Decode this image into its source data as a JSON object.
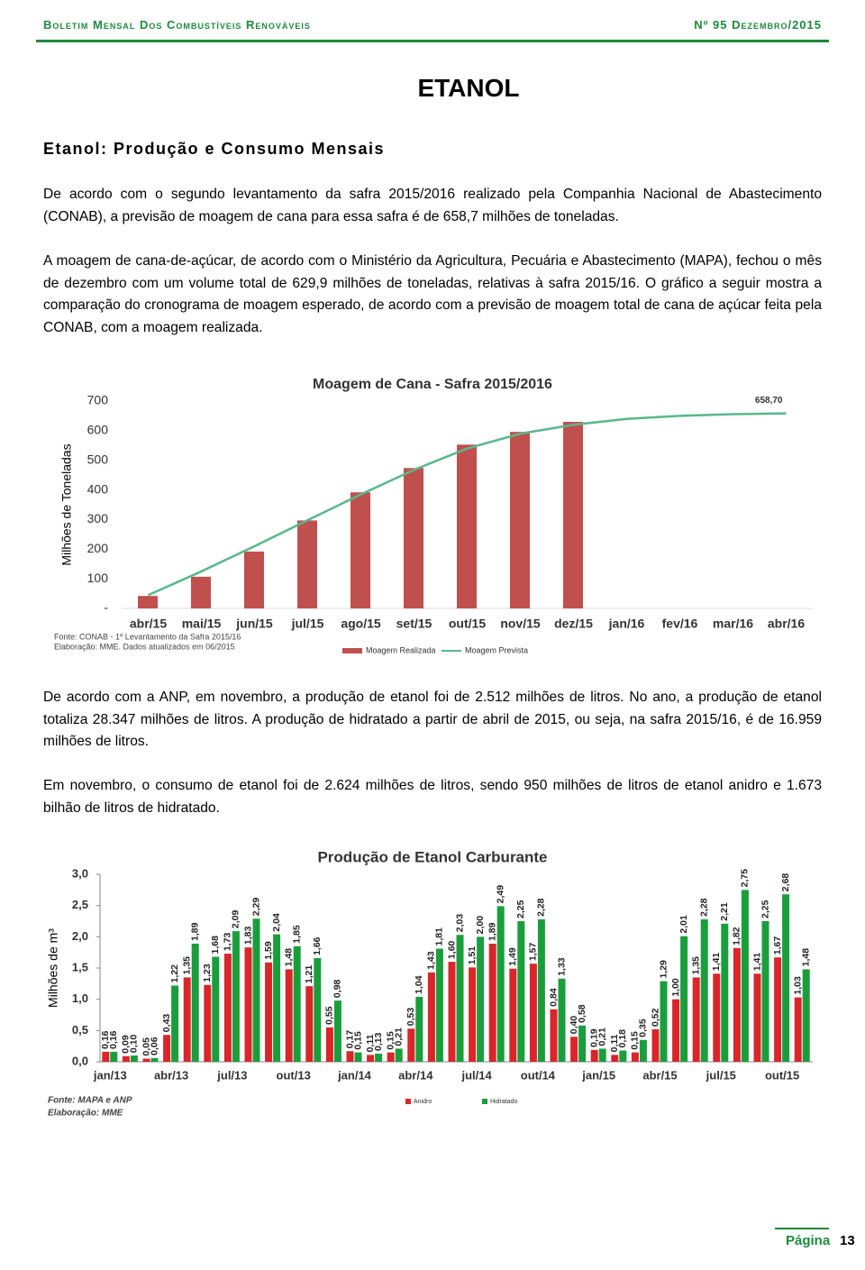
{
  "header": {
    "title": "Boletim Mensal Dos Combustíveis Renováveis",
    "issue": "Nº 95 Dezembro/2015"
  },
  "section_title": "ETANOL",
  "subtitle": "Etanol: Produção e Consumo Mensais",
  "paragraphs": [
    "De acordo com o segundo levantamento da safra 2015/2016 realizado pela Companhia Nacional de Abastecimento (CONAB), a previsão de moagem de cana para essa safra é de 658,7 milhões de toneladas.",
    "A moagem de cana-de-açúcar, de acordo com o Ministério da Agricultura, Pecuária e Abastecimento (MAPA), fechou o mês de dezembro com um volume total de 629,9 milhões de toneladas, relativas à safra 2015/16. O gráfico a seguir mostra a comparação do cronograma de moagem esperado, de acordo com a previsão de moagem total de cana de açúcar feita pela CONAB, com a moagem realizada.",
    "De acordo com a ANP, em novembro, a produção de etanol foi de 2.512 milhões de litros. No ano, a produção de etanol totaliza 28.347 milhões de litros. A produção de hidratado a partir de abril de 2015, ou seja, na safra 2015/16, é de 16.959 milhões de litros.",
    "Em novembro, o consumo de etanol foi de 2.624 milhões de litros, sendo 950 milhões de litros de etanol anidro e 1.673 bilhão de litros de hidratado."
  ],
  "chart_data": [
    {
      "type": "bar",
      "title": "Moagem de Cana - Safra 2015/2016",
      "y_label": "Milhões de Toneladas",
      "categories": [
        "abr/15",
        "mai/15",
        "jun/15",
        "jul/15",
        "ago/15",
        "set/15",
        "out/15",
        "nov/15",
        "dez/15",
        "jan/16",
        "fev/16",
        "mar/16",
        "abr/16"
      ],
      "series": [
        {
          "name": "Moagem Realizada",
          "type": "bar",
          "color": "#c0504d",
          "values": [
            42,
            107,
            192,
            297,
            392,
            474,
            553,
            596,
            629.9,
            null,
            null,
            null,
            null
          ]
        },
        {
          "name": "Moagem Prevista",
          "type": "line",
          "color": "#58b88a",
          "values": [
            45,
            125,
            210,
            298,
            385,
            468,
            540,
            590,
            620,
            640,
            650,
            656,
            658.7
          ],
          "value_labels": [
            null,
            null,
            null,
            null,
            null,
            null,
            null,
            null,
            null,
            null,
            null,
            null,
            "658,70"
          ]
        }
      ],
      "ylim": [
        0,
        700
      ],
      "yticks": [
        {
          "value": 0,
          "label": "-"
        },
        100,
        200,
        300,
        400,
        500,
        600,
        700
      ],
      "grid": false,
      "source": [
        "Fonte: CONAB - 1º Levantamento da Safra 2015/16",
        "Elaboração: MME. Dados atualizados em 06/2015"
      ]
    },
    {
      "type": "bar",
      "title": "Produção de Etanol Carburante",
      "y_label": "Milhões de m³",
      "categories": [
        "jan/13",
        null,
        null,
        "abr/13",
        null,
        null,
        "jul/13",
        null,
        null,
        "out/13",
        null,
        null,
        "jan/14",
        null,
        null,
        "abr/14",
        null,
        null,
        "jul/14",
        null,
        null,
        "out/14",
        null,
        null,
        "jan/15",
        null,
        null,
        "abr/15",
        null,
        null,
        "jul/15",
        null,
        null,
        "out/15",
        null
      ],
      "series": [
        {
          "name": "Anidro",
          "type": "bar",
          "color": "#d9262a",
          "values": [
            0.16,
            0.09,
            0.05,
            0.43,
            1.35,
            1.23,
            1.73,
            1.83,
            1.59,
            1.48,
            1.21,
            0.55,
            0.17,
            0.11,
            0.15,
            0.53,
            1.43,
            1.6,
            1.51,
            1.89,
            1.49,
            1.57,
            0.84,
            0.4,
            0.19,
            0.11,
            0.15,
            0.52,
            1.0,
            1.35,
            1.41,
            1.82,
            1.41,
            1.67,
            1.03
          ],
          "value_labels": [
            "0,16",
            "0,09",
            "0,05",
            "0,43",
            "1,35",
            "1,23",
            "1,73",
            "1,83",
            "1,59",
            "1,48",
            "1,21",
            "0,55",
            "0,17",
            "0,11",
            "0,15",
            "0,53",
            "1,43",
            "1,60",
            "1,51",
            "1,89",
            "1,49",
            "1,57",
            "0,84",
            "0,40",
            "0,19",
            "0,11",
            "0,15",
            "0,52",
            "1,00",
            "1,35",
            "1,41",
            "1,82",
            "1,41",
            "1,67",
            "1,03"
          ]
        },
        {
          "name": "Hidratado",
          "type": "bar",
          "color": "#1a9e3c",
          "values": [
            0.16,
            0.1,
            0.06,
            1.22,
            1.89,
            1.68,
            2.09,
            2.29,
            2.04,
            1.85,
            1.66,
            0.98,
            0.15,
            0.13,
            0.21,
            1.04,
            1.81,
            2.03,
            2.0,
            2.49,
            2.25,
            2.28,
            1.33,
            0.58,
            0.21,
            0.18,
            0.35,
            1.29,
            2.01,
            2.28,
            2.21,
            2.75,
            2.25,
            2.68,
            1.48
          ],
          "value_labels": [
            "0,16",
            "0,10",
            "0,06",
            "1,22",
            "1,89",
            "1,68",
            "2,09",
            "2,29",
            "2,04",
            "1,85",
            "1,66",
            "0,98",
            "0,15",
            "0,13",
            "0,21",
            "1,04",
            "1,81",
            "2,03",
            "2,00",
            "2,49",
            "2,25",
            "2,28",
            "1,33",
            "0,58",
            "0,21",
            "0,18",
            "0,35",
            "1,29",
            "2,01",
            "2,28",
            "2,21",
            "2,75",
            "2,25",
            "2,68",
            "1,48"
          ]
        }
      ],
      "ylim": [
        0,
        3
      ],
      "yticks": [
        {
          "value": 0,
          "label": "0,0"
        },
        {
          "value": 0.5,
          "label": "0,5"
        },
        {
          "value": 1,
          "label": "1,0"
        },
        {
          "value": 1.5,
          "label": "1,5"
        },
        {
          "value": 2,
          "label": "2,0"
        },
        {
          "value": 2.5,
          "label": "2,5"
        },
        {
          "value": 3,
          "label": "3,0"
        }
      ],
      "grid": false,
      "source": [
        "Fonte: MAPA e ANP",
        "Elaboração: MME"
      ]
    }
  ],
  "footer": {
    "label": "Página",
    "number": 13
  }
}
